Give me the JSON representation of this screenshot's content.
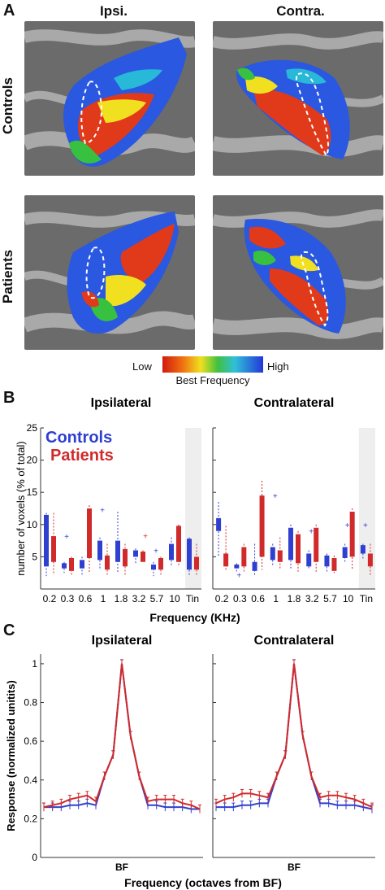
{
  "panels": {
    "A": {
      "letter": "A",
      "col_titles": [
        "Ipsi.",
        "Contra."
      ],
      "row_titles": [
        "Controls",
        "Patients"
      ]
    },
    "colorbar": {
      "low": "Low",
      "high": "High",
      "title": "Best Frequency"
    },
    "B": {
      "letter": "B"
    },
    "C": {
      "letter": "C"
    }
  },
  "colors": {
    "controls": "#2f3fd0",
    "patients": "#d12a2a",
    "brain_dark": "#6b6b6b",
    "brain_light": "#a9a9a9"
  },
  "chart_data": [
    {
      "type": "box",
      "panel": "B",
      "subplots": [
        {
          "title": "Ipsilateral",
          "categories": [
            "0.2",
            "0.3",
            "0.6",
            "1",
            "1.8",
            "3.2",
            "5.7",
            "10",
            "Tin"
          ],
          "series": [
            {
              "name": "Controls",
              "box_low": [
                3.5,
                3.2,
                3.2,
                4.5,
                4.2,
                5.0,
                3.0,
                4.5,
                3.0
              ],
              "box_high": [
                11.5,
                4.0,
                4.5,
                7.5,
                7.5,
                6.0,
                3.8,
                7.0,
                7.8
              ],
              "whisk_low": [
                2.0,
                2.5,
                2.2,
                3.2,
                2.5,
                4.0,
                2.0,
                3.5,
                2.2
              ],
              "whisk_high": [
                11.8,
                4.2,
                5.0,
                8.0,
                12.0,
                6.3,
                4.2,
                8.0,
                8.0
              ],
              "outliers": [
                [],
                [
                  8.2
                ],
                [],
                [
                  12.3
                ],
                [],
                [],
                [
                  6.0
                ],
                [],
                []
              ]
            },
            {
              "name": "Patients",
              "box_low": [
                4.2,
                2.8,
                4.8,
                3.0,
                3.5,
                4.2,
                3.0,
                4.2,
                3.0
              ],
              "box_high": [
                8.2,
                4.8,
                12.5,
                5.2,
                6.2,
                5.8,
                4.8,
                9.8,
                5.0
              ],
              "whisk_low": [
                2.2,
                2.0,
                2.5,
                2.0,
                2.2,
                4.0,
                2.0,
                3.5,
                2.0
              ],
              "whisk_high": [
                11.8,
                5.0,
                13.0,
                7.0,
                7.0,
                6.0,
                5.0,
                10.0,
                7.0
              ],
              "outliers": [
                [],
                [],
                [],
                [],
                [],
                [
                  8.3
                ],
                [],
                [],
                []
              ]
            }
          ]
        },
        {
          "title": "Contralateral",
          "categories": [
            "0.2",
            "0.3",
            "0.6",
            "1",
            "1.8",
            "3.2",
            "5.7",
            "10",
            "Tin"
          ],
          "series": [
            {
              "name": "Controls",
              "box_low": [
                9.0,
                3.2,
                2.8,
                4.5,
                4.5,
                3.5,
                3.5,
                4.8,
                5.5
              ],
              "box_high": [
                11.0,
                3.8,
                4.2,
                6.5,
                9.5,
                5.5,
                5.2,
                6.5,
                6.8
              ],
              "whisk_low": [
                5.0,
                2.5,
                2.0,
                3.5,
                3.2,
                3.0,
                2.5,
                4.0,
                4.5
              ],
              "whisk_high": [
                13.5,
                4.0,
                7.0,
                7.0,
                10.0,
                6.0,
                5.5,
                7.0,
                7.0
              ],
              "outliers": [
                [],
                [
                  2.2
                ],
                [],
                [
                  14.5
                ],
                [],
                [
                  9.0
                ],
                [],
                [
                  10.0
                ],
                [
                  10.0
                ]
              ]
            },
            {
              "name": "Patients",
              "box_low": [
                3.5,
                3.5,
                5.0,
                4.2,
                4.0,
                4.2,
                2.8,
                5.0,
                3.5
              ],
              "box_high": [
                5.5,
                6.5,
                14.5,
                6.0,
                8.5,
                9.5,
                4.8,
                12.0,
                5.5
              ],
              "whisk_low": [
                2.8,
                2.5,
                3.0,
                3.0,
                2.5,
                2.5,
                2.5,
                3.0,
                2.2
              ],
              "whisk_high": [
                9.8,
                7.0,
                16.8,
                8.0,
                9.0,
                10.0,
                5.2,
                12.5,
                7.0
              ],
              "outliers": [
                [],
                [],
                [],
                [],
                [],
                [],
                [],
                [],
                []
              ]
            }
          ]
        }
      ],
      "ylabel": "number of voxels (% of total)",
      "xlabel": "Frequency (KHz)",
      "yticks": [
        5,
        10,
        15,
        20,
        25
      ],
      "ylim": [
        0,
        25
      ],
      "legend": [
        "Controls",
        "Patients"
      ],
      "shaded_category": "Tin"
    },
    {
      "type": "line",
      "panel": "C",
      "subplots": [
        {
          "title": "Ipsilateral",
          "x": [
            -9,
            -8,
            -7,
            -6,
            -5,
            -4,
            -3,
            -2,
            -1,
            0,
            1,
            2,
            3,
            4,
            5,
            6,
            7,
            8,
            9
          ],
          "series": [
            {
              "name": "Controls",
              "values": [
                0.26,
                0.26,
                0.26,
                0.27,
                0.27,
                0.28,
                0.27,
                0.42,
                0.53,
                1.0,
                0.63,
                0.42,
                0.27,
                0.27,
                0.26,
                0.26,
                0.26,
                0.25,
                0.25
              ]
            },
            {
              "name": "Patients",
              "values": [
                0.26,
                0.27,
                0.28,
                0.3,
                0.31,
                0.32,
                0.29,
                0.42,
                0.53,
                1.0,
                0.63,
                0.42,
                0.29,
                0.3,
                0.3,
                0.3,
                0.28,
                0.27,
                0.25
              ]
            }
          ]
        },
        {
          "title": "Contralateral",
          "x": [
            -9,
            -8,
            -7,
            -6,
            -5,
            -4,
            -3,
            -2,
            -1,
            0,
            1,
            2,
            3,
            4,
            5,
            6,
            7,
            8,
            9
          ],
          "series": [
            {
              "name": "Controls",
              "values": [
                0.26,
                0.26,
                0.26,
                0.27,
                0.27,
                0.28,
                0.28,
                0.42,
                0.53,
                1.0,
                0.63,
                0.42,
                0.28,
                0.28,
                0.27,
                0.27,
                0.27,
                0.26,
                0.25
              ]
            },
            {
              "name": "Patients",
              "values": [
                0.28,
                0.3,
                0.31,
                0.33,
                0.33,
                0.32,
                0.31,
                0.42,
                0.53,
                1.0,
                0.63,
                0.42,
                0.31,
                0.32,
                0.32,
                0.31,
                0.3,
                0.28,
                0.26
              ]
            }
          ]
        }
      ],
      "ylabel": "Response (normalized unitits)",
      "xlabel": "Frequency (octaves from BF)",
      "xtick_label": "BF",
      "yticks": [
        0,
        0.2,
        0.4,
        0.6,
        0.8,
        1
      ],
      "ytick_labels": [
        "0",
        "0.2",
        "0.4",
        "0.6",
        "0.8",
        "1"
      ],
      "ylim": [
        0,
        1.05
      ]
    }
  ]
}
